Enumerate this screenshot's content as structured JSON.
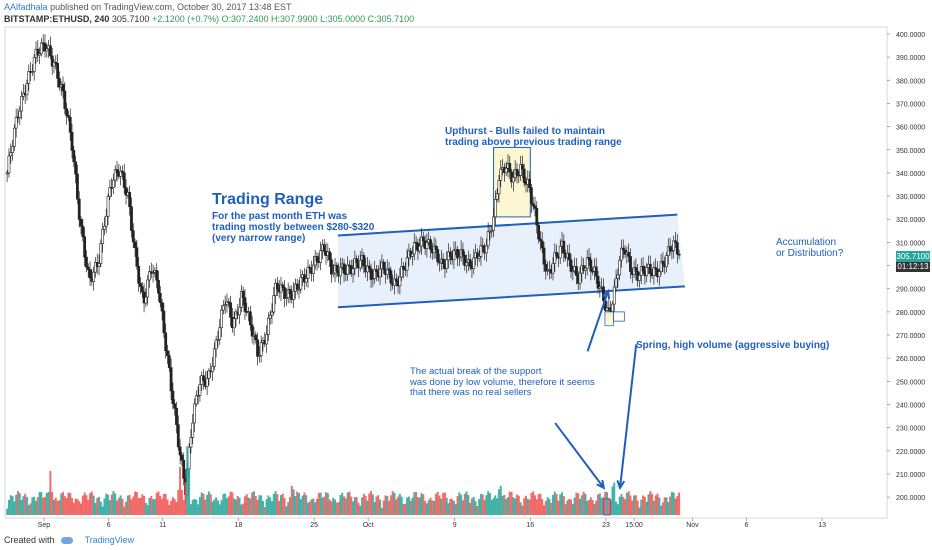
{
  "header": {
    "author": "AAlfadhala",
    "published": "published on TradingView.com, October 30, 2017 13:48 EST",
    "symbol": "BITSTAMP:ETHUSD, 240",
    "last": "305.7100",
    "change": "+2.1200 (+0.7%)",
    "ohlc": "O:307.2400 H:307.9900 L:305.0000 C:305.7100"
  },
  "annotations": {
    "trading_range_title": "Trading Range",
    "trading_range_text": [
      "For the past month ETH was",
      "trading mostly between $280-$320",
      "(very narrow range)"
    ],
    "upthrust": [
      "Upthurst - Bulls failed to maintain",
      "trading above previous trading range"
    ],
    "accumulation": [
      "Accumulation",
      "or Distribution?"
    ],
    "spring": "Spring, high volume (aggressive buying)",
    "support_break": [
      "The actual break of the support",
      "was done by low volume, therefore it seems",
      "that there was no real sellers"
    ]
  },
  "price_tags": {
    "last_price": "305.7100",
    "countdown": "01:12:13"
  },
  "footer": {
    "created_with": "Created with",
    "brand": "TradingView"
  },
  "colors": {
    "up": "#26a69a",
    "down": "#ef5350",
    "candle": "#222222",
    "annotation": "#1f5fbf",
    "range_fill": "#e8f0fb",
    "upthrust_fill": "#fdf6d3"
  },
  "chart_data": {
    "type": "candlestick",
    "y_ticks": [
      200,
      210,
      220,
      230,
      240,
      250,
      260,
      270,
      280,
      290,
      300,
      310,
      320,
      330,
      340,
      350,
      360,
      370,
      380,
      390,
      400
    ],
    "y_tick_labels": [
      "200.0000",
      "210.0000",
      "220.0000",
      "230.0000",
      "240.0000",
      "250.0000",
      "260.0000",
      "270.0000",
      "280.0000",
      "290.0000",
      "300.0000",
      "310.0000",
      "320.0000",
      "330.0000",
      "340.0000",
      "350.0000",
      "360.0000",
      "370.0000",
      "380.0000",
      "390.0000",
      "400.0000"
    ],
    "ylim": [
      191,
      403
    ],
    "x_ticks": [
      {
        "day": 0,
        "label": "Sep"
      },
      {
        "day": 6,
        "label": "6"
      },
      {
        "day": 11,
        "label": "11"
      },
      {
        "day": 18,
        "label": "18"
      },
      {
        "day": 25,
        "label": "25"
      },
      {
        "day": 30,
        "label": "Oct"
      },
      {
        "day": 38,
        "label": "9"
      },
      {
        "day": 45,
        "label": "16"
      },
      {
        "day": 52,
        "label": "23"
      },
      {
        "day": 54.6,
        "label": "15:00"
      },
      {
        "day": 60,
        "label": "Nov"
      },
      {
        "day": 65,
        "label": "6"
      },
      {
        "day": 72,
        "label": "13"
      }
    ],
    "xlim": [
      -3.6,
      78
    ],
    "price_path": [
      [
        -3.4,
        340
      ],
      [
        -2.4,
        365
      ],
      [
        -1.6,
        380
      ],
      [
        -0.8,
        390
      ],
      [
        0.2,
        395
      ],
      [
        1,
        388
      ],
      [
        1.8,
        372
      ],
      [
        2.6,
        352
      ],
      [
        3.4,
        318
      ],
      [
        4.2,
        292
      ],
      [
        5,
        300
      ],
      [
        5.6,
        320
      ],
      [
        6.2,
        336
      ],
      [
        7,
        340
      ],
      [
        7.8,
        330
      ],
      [
        8.6,
        300
      ],
      [
        9.2,
        282
      ],
      [
        10,
        300
      ],
      [
        10.6,
        292
      ],
      [
        11.2,
        268
      ],
      [
        11.8,
        245
      ],
      [
        12.5,
        222
      ],
      [
        13.1,
        205
      ],
      [
        13.7,
        232
      ],
      [
        14.4,
        248
      ],
      [
        15.2,
        252
      ],
      [
        16,
        268
      ],
      [
        16.8,
        285
      ],
      [
        17.5,
        275
      ],
      [
        18.3,
        288
      ],
      [
        19,
        275
      ],
      [
        19.8,
        262
      ],
      [
        20.6,
        272
      ],
      [
        21.5,
        290
      ],
      [
        22.4,
        288
      ],
      [
        23.3,
        290
      ],
      [
        24.2,
        294
      ],
      [
        25,
        302
      ],
      [
        25.9,
        308
      ],
      [
        26.7,
        296
      ],
      [
        27.5,
        300
      ],
      [
        28.5,
        298
      ],
      [
        29.5,
        302
      ],
      [
        30.5,
        296
      ],
      [
        31.5,
        298
      ],
      [
        32.5,
        293
      ],
      [
        33.5,
        300
      ],
      [
        34.3,
        308
      ],
      [
        35.1,
        312
      ],
      [
        36,
        306
      ],
      [
        36.8,
        300
      ],
      [
        37.6,
        306
      ],
      [
        38.4,
        304
      ],
      [
        39.3,
        300
      ],
      [
        40.1,
        306
      ],
      [
        40.9,
        307
      ],
      [
        41.6,
        320
      ],
      [
        42.1,
        340
      ],
      [
        42.7,
        344
      ],
      [
        43.4,
        336
      ],
      [
        44.1,
        342
      ],
      [
        44.9,
        335
      ],
      [
        45.5,
        320
      ],
      [
        46,
        306
      ],
      [
        46.6,
        296
      ],
      [
        47.2,
        304
      ],
      [
        47.9,
        308
      ],
      [
        48.6,
        300
      ],
      [
        49.4,
        296
      ],
      [
        50.2,
        302
      ],
      [
        50.9,
        296
      ],
      [
        51.7,
        288
      ],
      [
        52.2,
        280
      ],
      [
        52.7,
        286
      ],
      [
        53.2,
        300
      ],
      [
        53.7,
        308
      ],
      [
        54.3,
        300
      ],
      [
        55,
        296
      ],
      [
        55.8,
        297
      ],
      [
        56.6,
        298
      ],
      [
        57.4,
        302
      ],
      [
        58.2,
        308
      ],
      [
        58.8,
        306
      ]
    ],
    "volume_peaks": [
      {
        "day": 13.3,
        "v": 0.95
      },
      {
        "day": 12.6,
        "v": 0.6
      },
      {
        "day": 0.6,
        "v": 0.55
      },
      {
        "day": 23.0,
        "v": 0.45
      },
      {
        "day": 42.2,
        "v": 0.45
      },
      {
        "day": 52.7,
        "v": 0.5
      }
    ],
    "trading_range": {
      "upper": [
        [
          27.2,
          313
        ],
        [
          58.6,
          322
        ]
      ],
      "lower": [
        [
          27.2,
          282
        ],
        [
          59.3,
          291
        ]
      ]
    },
    "upthrust_box": {
      "day_from": 41.6,
      "day_to": 45.0,
      "price_from": 321,
      "price_to": 351
    },
    "spring_box": {
      "day_from": 51.9,
      "day_to": 52.7,
      "price_from": 274,
      "price_to": 280
    },
    "spring_marker": {
      "day_from": 52.7,
      "day_to": 53.7,
      "price_from": 276,
      "price_to": 280
    },
    "volume_marker": {
      "day_from": 51.8,
      "day_to": 52.4,
      "volume_from": 0,
      "volume_to": 0.2
    },
    "support_break_arrow": {
      "from": [
        50.3,
        263
      ],
      "to": [
        52.2,
        289
      ]
    },
    "spring_arrow": {
      "from": [
        54.8,
        266
      ],
      "to": [
        53.3,
        204
      ]
    },
    "support_break_volume_arrow": {
      "from": [
        47.3,
        232
      ],
      "to": [
        51.8,
        204
      ]
    }
  }
}
